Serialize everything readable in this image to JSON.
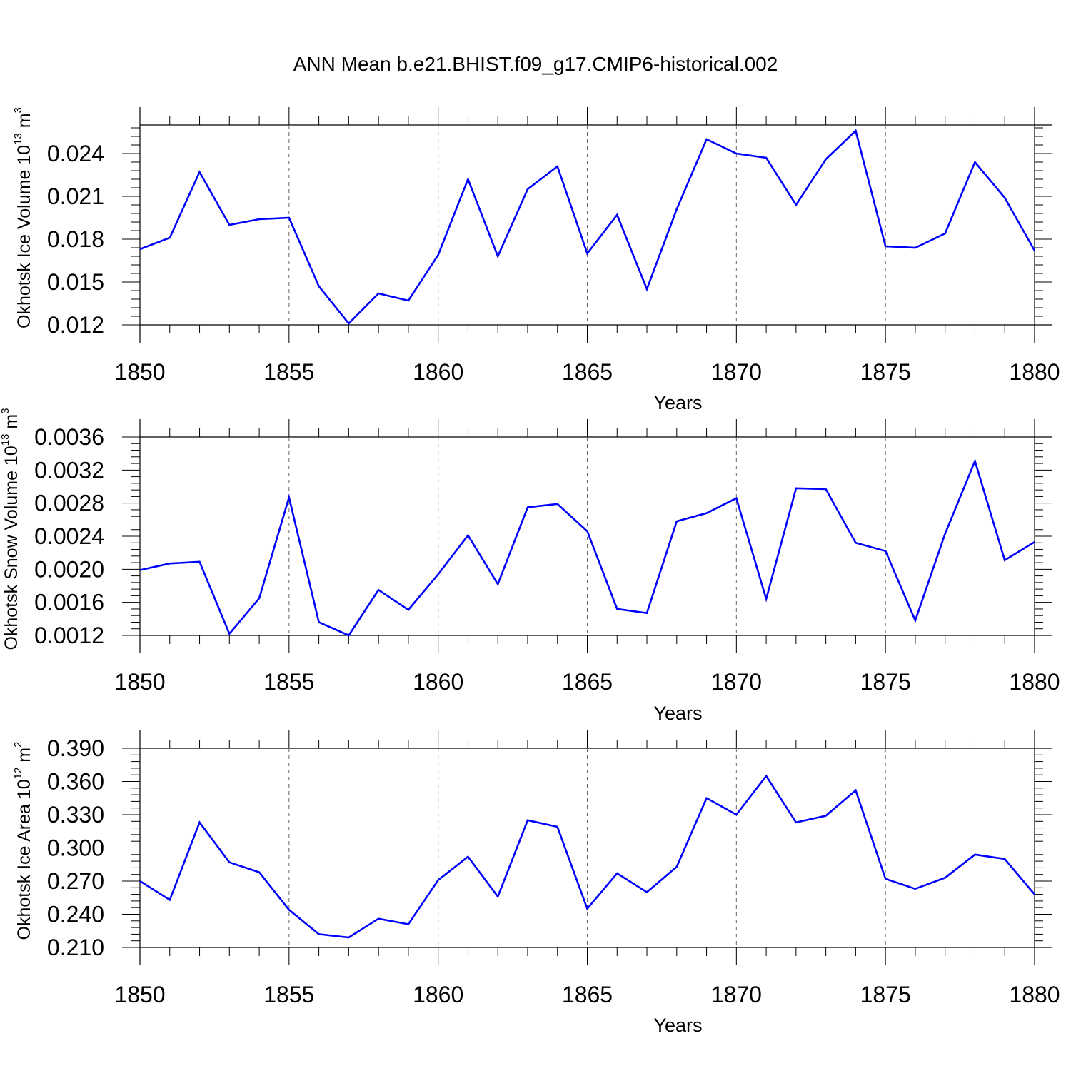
{
  "figure": {
    "title": "ANN Mean b.e21.BHIST.f09_g17.CMIP6-historical.002"
  },
  "chart_data": [
    {
      "type": "line",
      "ylabel": {
        "text": "Okhotsk Ice Volume 10",
        "exp": "13",
        "unit": " m",
        "unit_exp": "3"
      },
      "xlabel": "Years",
      "xlim": [
        1850,
        1880
      ],
      "ylim": [
        0.012,
        0.026
      ],
      "x_ticks": [
        "1850",
        "1855",
        "1860",
        "1865",
        "1870",
        "1875",
        "1880"
      ],
      "y_ticks": [
        "0.012",
        "0.015",
        "0.018",
        "0.021",
        "0.024"
      ],
      "grid": "vertical dashed at major x ticks",
      "line_color": "#0000ff",
      "x": [
        1850,
        1851,
        1852,
        1853,
        1854,
        1855,
        1856,
        1857,
        1858,
        1859,
        1860,
        1861,
        1862,
        1863,
        1864,
        1865,
        1866,
        1867,
        1868,
        1869,
        1870,
        1871,
        1872,
        1873,
        1874,
        1875,
        1876,
        1877,
        1878,
        1879,
        1880
      ],
      "values": [
        0.0173,
        0.0181,
        0.0227,
        0.019,
        0.0194,
        0.0195,
        0.0147,
        0.0121,
        0.0142,
        0.0137,
        0.0169,
        0.0222,
        0.0168,
        0.0215,
        0.0231,
        0.017,
        0.0197,
        0.0145,
        0.0201,
        0.025,
        0.024,
        0.0237,
        0.0204,
        0.0236,
        0.0256,
        0.0175,
        0.0174,
        0.0184,
        0.0234,
        0.0209,
        0.0172
      ]
    },
    {
      "type": "line",
      "ylabel": {
        "text": "Okhotsk Snow Volume 10",
        "exp": "13",
        "unit": " m",
        "unit_exp": "3"
      },
      "xlabel": "Years",
      "xlim": [
        1850,
        1880
      ],
      "ylim": [
        0.0012,
        0.0036
      ],
      "x_ticks": [
        "1850",
        "1855",
        "1860",
        "1865",
        "1870",
        "1875",
        "1880"
      ],
      "y_ticks": [
        "0.0012",
        "0.0016",
        "0.0020",
        "0.0024",
        "0.0028",
        "0.0032",
        "0.0036"
      ],
      "grid": "vertical dashed at major x ticks",
      "line_color": "#0000ff",
      "x": [
        1850,
        1851,
        1852,
        1853,
        1854,
        1855,
        1856,
        1857,
        1858,
        1859,
        1860,
        1861,
        1862,
        1863,
        1864,
        1865,
        1866,
        1867,
        1868,
        1869,
        1870,
        1871,
        1872,
        1873,
        1874,
        1875,
        1876,
        1877,
        1878,
        1879,
        1880
      ],
      "values": [
        0.00199,
        0.00207,
        0.00209,
        0.00122,
        0.00165,
        0.00287,
        0.00136,
        0.0012,
        0.00175,
        0.00151,
        0.00194,
        0.00241,
        0.00182,
        0.00275,
        0.00279,
        0.00246,
        0.00152,
        0.00147,
        0.00258,
        0.00268,
        0.00286,
        0.00164,
        0.00298,
        0.00297,
        0.00232,
        0.00222,
        0.00138,
        0.00243,
        0.00331,
        0.00211,
        0.00233
      ]
    },
    {
      "type": "line",
      "ylabel": {
        "text": "Okhotsk Ice Area 10",
        "exp": "12",
        "unit": " m",
        "unit_exp": "2"
      },
      "xlabel": "Years",
      "xlim": [
        1850,
        1880
      ],
      "ylim": [
        0.21,
        0.39
      ],
      "x_ticks": [
        "1850",
        "1855",
        "1860",
        "1865",
        "1870",
        "1875",
        "1880"
      ],
      "y_ticks": [
        "0.210",
        "0.240",
        "0.270",
        "0.300",
        "0.330",
        "0.360",
        "0.390"
      ],
      "grid": "vertical dashed at major x ticks",
      "line_color": "#0000ff",
      "x": [
        1850,
        1851,
        1852,
        1853,
        1854,
        1855,
        1856,
        1857,
        1858,
        1859,
        1860,
        1861,
        1862,
        1863,
        1864,
        1865,
        1866,
        1867,
        1868,
        1869,
        1870,
        1871,
        1872,
        1873,
        1874,
        1875,
        1876,
        1877,
        1878,
        1879,
        1880
      ],
      "values": [
        0.27,
        0.253,
        0.323,
        0.287,
        0.278,
        0.244,
        0.222,
        0.219,
        0.236,
        0.231,
        0.271,
        0.292,
        0.256,
        0.325,
        0.319,
        0.245,
        0.277,
        0.26,
        0.283,
        0.345,
        0.33,
        0.365,
        0.323,
        0.329,
        0.352,
        0.272,
        0.263,
        0.273,
        0.294,
        0.29,
        0.258
      ]
    }
  ]
}
